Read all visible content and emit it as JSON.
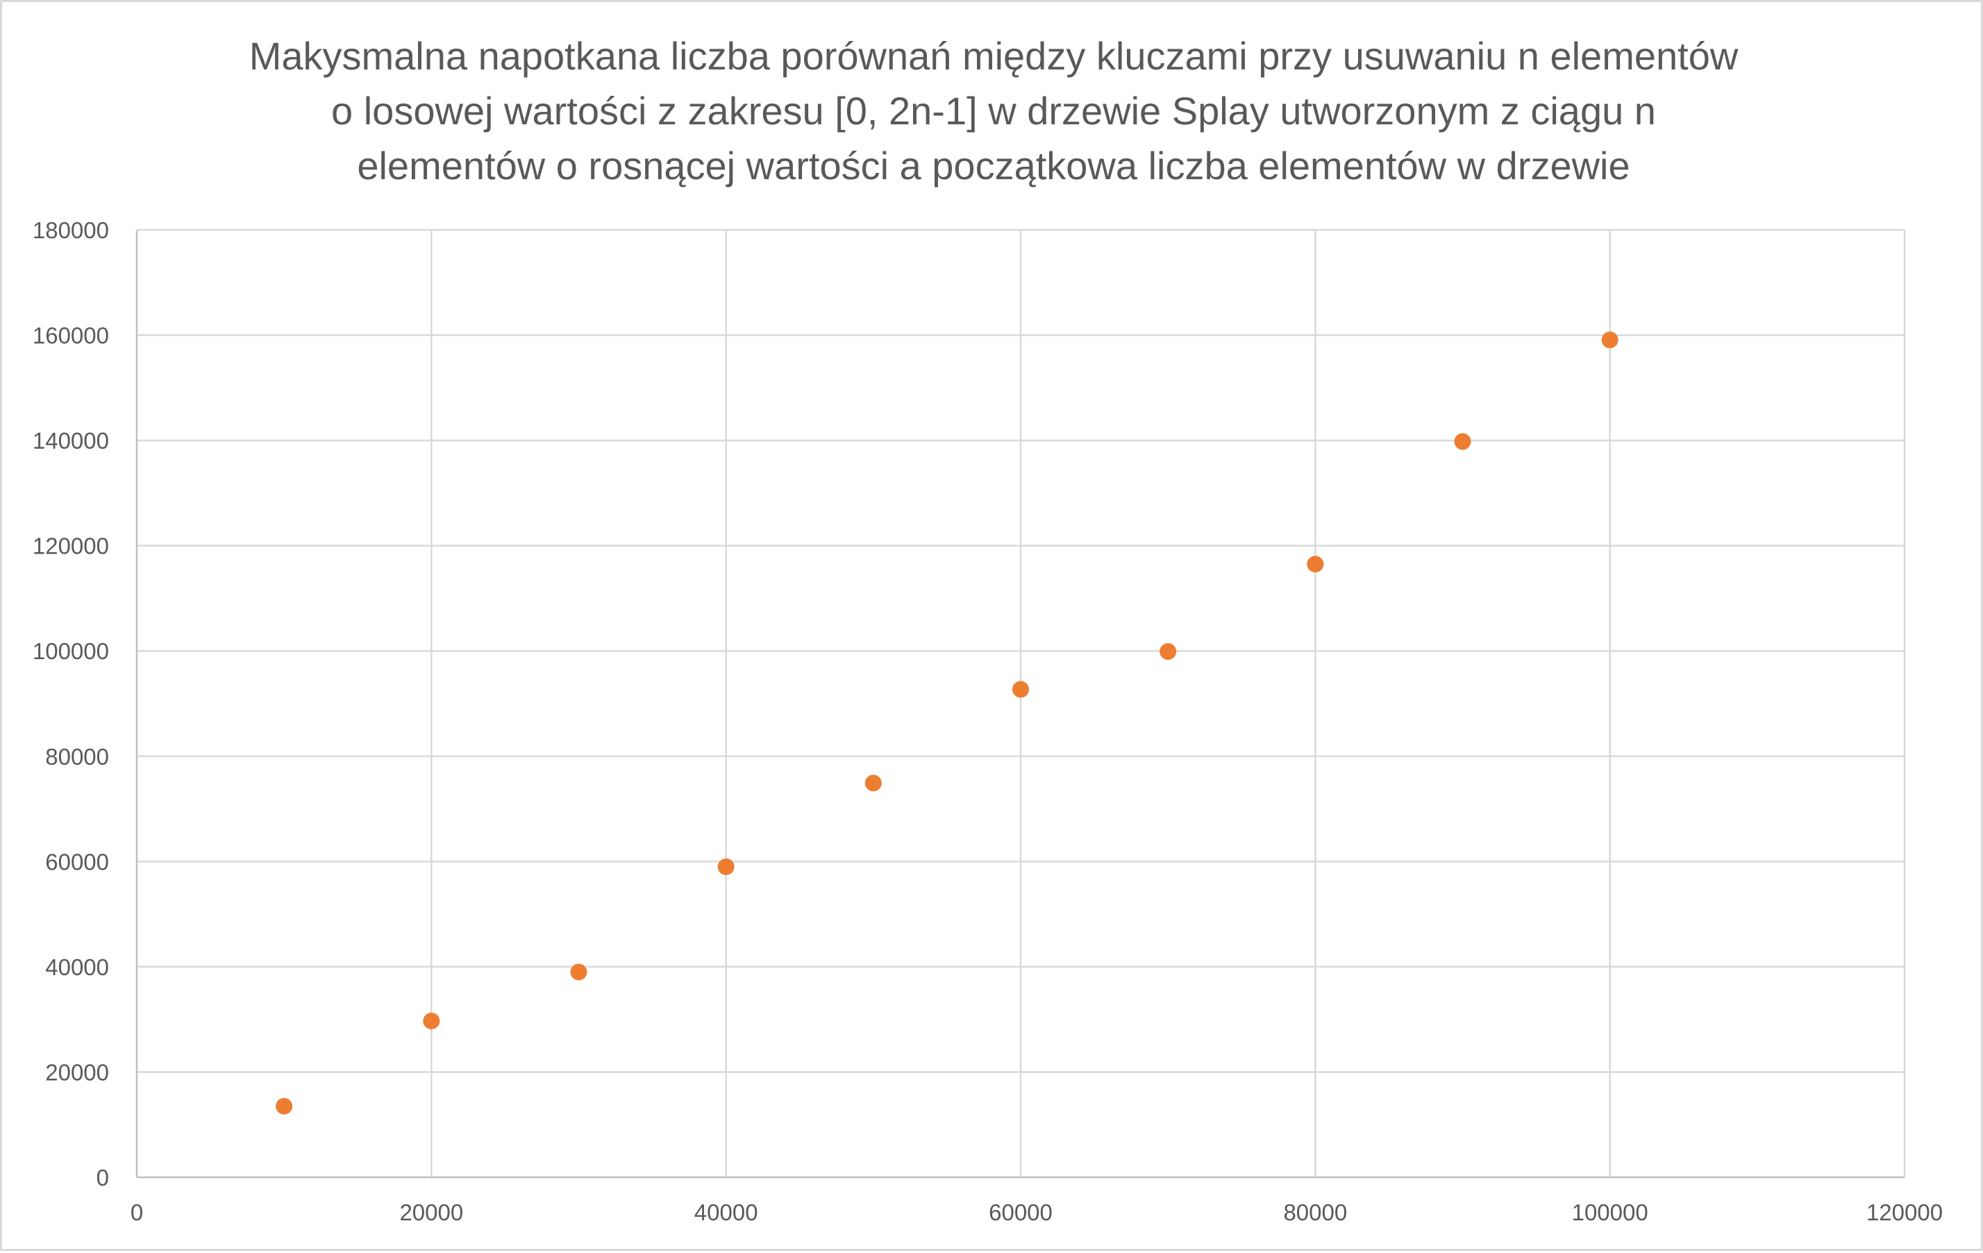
{
  "chart_data": {
    "type": "scatter",
    "title_lines": [
      "Makysmalna napotkana liczba porównań między kluczami przy usuwaniu n elementów",
      "o losowej wartości z zakresu [0, 2n-1] w drzewie Splay utworzonym z ciągu n",
      "elementów o rosnącej wartości a początkowa liczba elementów w drzewie"
    ],
    "xlabel": "",
    "ylabel": "",
    "xlim": [
      0,
      120000
    ],
    "ylim": [
      0,
      180000
    ],
    "x_ticks": [
      0,
      20000,
      40000,
      60000,
      80000,
      100000,
      120000
    ],
    "y_ticks": [
      0,
      20000,
      40000,
      60000,
      80000,
      100000,
      120000,
      140000,
      160000,
      180000
    ],
    "grid": true,
    "legend": "none",
    "series": [
      {
        "color": "#ED7D31",
        "points": [
          {
            "x": 10000,
            "y": 13500
          },
          {
            "x": 20000,
            "y": 29700
          },
          {
            "x": 30000,
            "y": 39000
          },
          {
            "x": 40000,
            "y": 59000
          },
          {
            "x": 50000,
            "y": 74900
          },
          {
            "x": 60000,
            "y": 92700
          },
          {
            "x": 70000,
            "y": 99900
          },
          {
            "x": 80000,
            "y": 116500
          },
          {
            "x": 90000,
            "y": 139800
          },
          {
            "x": 100000,
            "y": 159100
          }
        ]
      }
    ],
    "colors": {
      "grid": "#d9d9d9",
      "axis": "#bfbfbf",
      "text": "#595959"
    }
  }
}
